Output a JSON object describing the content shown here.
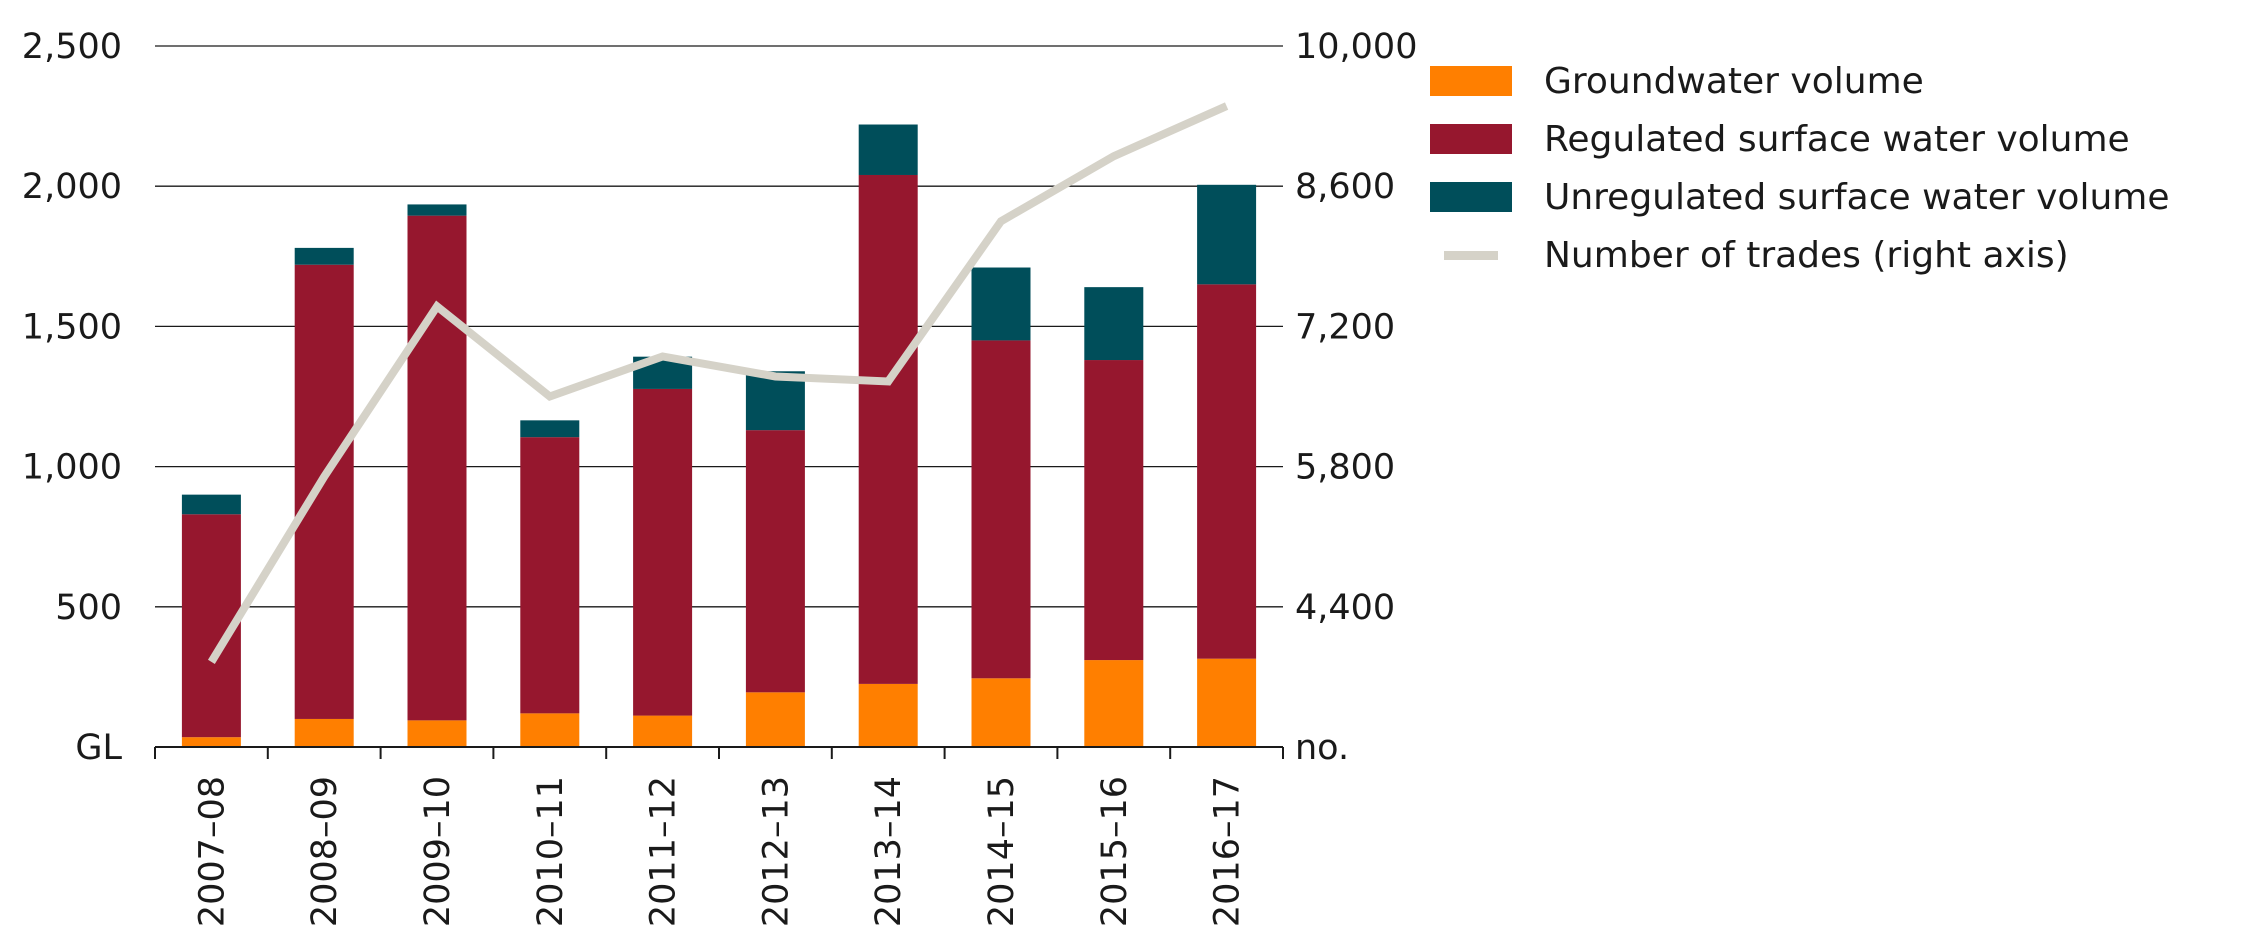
{
  "chart_data": {
    "type": "bar",
    "stacked": true,
    "categories": [
      "2007–08",
      "2008–09",
      "2009–10",
      "2010–11",
      "2011–12",
      "2012–13",
      "2013–14",
      "2014–15",
      "2015–16",
      "2016–17"
    ],
    "series": [
      {
        "name": "Groundwater volume",
        "color": "#ff7f00",
        "values": [
          35,
          100,
          95,
          120,
          112,
          195,
          225,
          245,
          310,
          315
        ]
      },
      {
        "name": "Regulated surface water volume",
        "color": "#96172e",
        "values": [
          795,
          1620,
          1800,
          985,
          1165,
          935,
          1815,
          1205,
          1070,
          1335
        ]
      },
      {
        "name": "Unregulated surface water volume",
        "color": "#004e5a",
        "values": [
          70,
          60,
          40,
          60,
          115,
          210,
          180,
          260,
          260,
          355
        ]
      }
    ],
    "line_series": {
      "name": "Number of trades (right axis)",
      "color": "#d5d2c8",
      "axis": "right",
      "values": [
        3850,
        5700,
        7400,
        6500,
        6900,
        6700,
        6650,
        8250,
        8900,
        9400
      ]
    },
    "left_axis": {
      "unit_label": "GL",
      "range": [
        0,
        2500
      ],
      "ticks": [
        500,
        1000,
        1500,
        2000,
        2500
      ],
      "tick_labels": [
        "500",
        "1,000",
        "1,500",
        "2,000",
        "2,500"
      ]
    },
    "right_axis": {
      "unit_label": "no.",
      "range": [
        3000,
        10000
      ],
      "ticks": [
        4400,
        5800,
        7200,
        8600,
        10000
      ],
      "tick_labels": [
        "4,400",
        "5,800",
        "7,200",
        "8,600",
        "10,000"
      ]
    },
    "grid": true,
    "legend_position": "right",
    "legend": [
      {
        "label": "Groundwater volume",
        "kind": "bar",
        "color": "#ff7f00"
      },
      {
        "label": "Regulated surface water volume",
        "kind": "bar",
        "color": "#96172e"
      },
      {
        "label": "Unregulated surface water volume",
        "kind": "bar",
        "color": "#004e5a"
      },
      {
        "label": "Number of trades (right axis)",
        "kind": "line",
        "color": "#d5d2c8"
      }
    ]
  }
}
